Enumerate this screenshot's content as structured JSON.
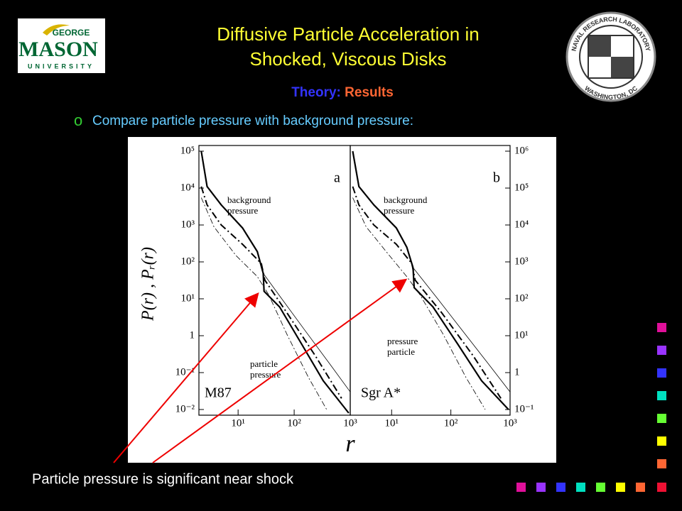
{
  "header": {
    "title_line1": "Diffusive Particle Acceleration in",
    "title_line2": "Shocked, Viscous Disks",
    "subtitle_prefix": "Theory:",
    "subtitle_rest": "Results"
  },
  "logos": {
    "left": {
      "line1": "GEORGE",
      "line2": "MASON",
      "line3": "UNIVERSITY"
    },
    "right": {
      "top": "NAVAL RESEARCH LABORATORY",
      "bottom": "WASHINGTON, DC"
    }
  },
  "bullet": {
    "marker": "o",
    "text": "Compare particle pressure with background pressure:"
  },
  "caption": "Particle pressure is significant near shock",
  "chart_data": {
    "type": "line",
    "log_x": true,
    "log_y": true,
    "x_label": "r",
    "y_label": "P(r)  ,  Pᵣ(r)",
    "panels": [
      {
        "label": "a",
        "name": "M87",
        "axis_side": "left",
        "xlim": [
          2,
          1000
        ],
        "xticks": [
          {
            "value": 10,
            "label": "10¹"
          },
          {
            "value": 100,
            "label": "10²"
          },
          {
            "value": 1000,
            "label": "10³"
          }
        ],
        "ylim": [
          0.01,
          100000
        ],
        "yticks": [
          {
            "value": 0.01,
            "label": "10⁻²"
          },
          {
            "value": 0.1,
            "label": "10⁻¹"
          },
          1,
          {
            "value": 10,
            "label": "10¹"
          },
          {
            "value": 100,
            "label": "10²"
          },
          {
            "value": 1000,
            "label": "10³"
          },
          {
            "value": 10000,
            "label": "10⁴"
          },
          {
            "value": 100000,
            "label": "10⁵"
          }
        ],
        "annotations": [
          [
            "background",
            "pressure"
          ],
          [
            "particle",
            "pressure"
          ]
        ],
        "series": [
          {
            "style": "solid",
            "color": "#000000",
            "x": [
              2.2,
              2.8,
              5,
              12,
              22,
              28,
              29,
              55,
              135,
              330,
              940
            ],
            "values": [
              100000,
              11000,
              3500,
              830,
              190,
              49,
              16,
              6,
              0.6,
              0.06,
              0.008
            ]
          },
          {
            "style": "thin-solid",
            "color": "#000000",
            "x": [
              28,
              60,
              150,
              400,
              1000
            ],
            "values": [
              49,
              10,
              1.5,
              0.2,
              0.03
            ]
          },
          {
            "style": "dash-dot",
            "color": "#000000",
            "x": [
              2.2,
              2.8,
              5,
              12,
              26,
              30,
              74,
              240,
              700
            ],
            "values": [
              11000,
              3500,
              1000,
              300,
              90,
              32,
              4.2,
              0.28,
              0.02
            ]
          },
          {
            "style": "thin-dash-dot",
            "color": "#000000",
            "x": [
              2.2,
              3.7,
              9.1,
              22,
              35,
              74,
              180,
              380
            ],
            "values": [
              5500,
              900,
              150,
              40,
              13,
              1.1,
              0.074,
              0.01
            ]
          }
        ]
      },
      {
        "label": "b",
        "name": "Sgr A*",
        "axis_side": "right",
        "xlim": [
          2,
          1000
        ],
        "xticks": [
          {
            "value": 10,
            "label": "10¹"
          },
          {
            "value": 100,
            "label": "10²"
          },
          {
            "value": 1000,
            "label": "10³"
          }
        ],
        "ylim": [
          0.1,
          1000000
        ],
        "yticks": [
          {
            "value": 0.1,
            "label": "10⁻¹"
          },
          1,
          {
            "value": 10,
            "label": "10¹"
          },
          {
            "value": 100,
            "label": "10²"
          },
          {
            "value": 1000,
            "label": "10³"
          },
          {
            "value": 10000,
            "label": "10⁴"
          },
          {
            "value": 100000,
            "label": "10⁵"
          },
          {
            "value": 1000000,
            "label": "10⁶"
          }
        ],
        "annotations": [
          [
            "background",
            "pressure"
          ],
          [
            "pressure",
            "particle"
          ]
        ],
        "series": [
          {
            "style": "solid",
            "color": "#000000",
            "x": [
              2.2,
              2.8,
              5,
              12,
              18,
              23,
              24,
              50,
              130,
              330,
              940
            ],
            "values": [
              1000000,
              110000,
              35000,
              8300,
              2500,
              700,
              200,
              60,
              6,
              0.6,
              0.1
            ]
          },
          {
            "style": "thin-solid",
            "color": "#000000",
            "x": [
              23,
              60,
              150,
              400,
              1000
            ],
            "values": [
              700,
              100,
              15,
              2,
              0.3
            ]
          },
          {
            "style": "dash-dot",
            "color": "#000000",
            "x": [
              2.2,
              2.8,
              5,
              12,
              22,
              25,
              70,
              240,
              700
            ],
            "values": [
              110000,
              35000,
              10000,
              3000,
              900,
              320,
              42,
              2.8,
              0.2
            ]
          },
          {
            "style": "thin-dash-dot",
            "color": "#000000",
            "x": [
              2.2,
              3.7,
              9.1,
              18,
              30,
              74,
              180,
              380
            ],
            "values": [
              55000,
              9000,
              1500,
              400,
              130,
              11,
              0.74,
              0.1
            ]
          }
        ]
      }
    ]
  }
}
